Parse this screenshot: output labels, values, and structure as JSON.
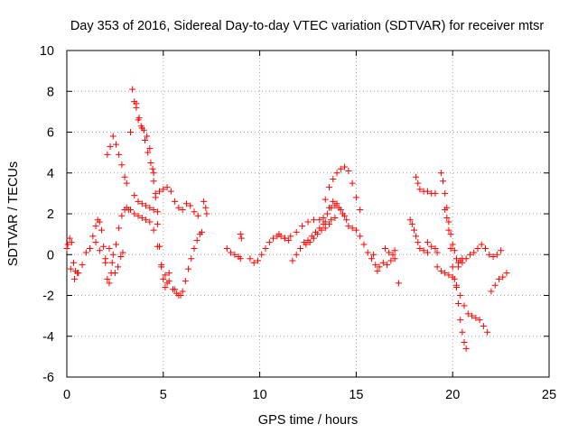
{
  "chart_data": {
    "type": "scatter",
    "title": "Day 353 of 2016, Sidereal Day-to-day VTEC variation (SDTVAR) for receiver mtsr",
    "xlabel": "GPS time / hours",
    "ylabel": "SDTVAR / TECUs",
    "xlim": [
      0,
      25
    ],
    "ylim": [
      -6,
      10
    ],
    "x_ticks": [
      0,
      5,
      10,
      15,
      20,
      25
    ],
    "y_ticks": [
      -6,
      -4,
      -2,
      0,
      2,
      4,
      6,
      8,
      10
    ],
    "grid": true,
    "marker": "plus",
    "color": "#ff0000",
    "series": [
      {
        "name": "s1",
        "x": [
          0.0,
          0.2,
          0.4,
          0.6,
          0.8,
          1.0,
          1.2
        ],
        "y": [
          0.3,
          -0.7,
          -1.2,
          -0.9,
          -0.5,
          0.1,
          0.3
        ]
      },
      {
        "name": "s2",
        "x": [
          0.05,
          0.15,
          0.25,
          0.35,
          0.45,
          0.55
        ],
        "y": [
          0.5,
          0.8,
          0.6,
          -0.4,
          -0.8,
          -0.9
        ]
      },
      {
        "name": "s3",
        "x": [
          1.2,
          1.35,
          1.5,
          1.6,
          1.7,
          1.8
        ],
        "y": [
          0.3,
          0.9,
          1.4,
          1.7,
          1.6,
          1.2
        ]
      },
      {
        "name": "s4",
        "x": [
          1.5,
          1.7,
          1.9,
          2.0,
          2.1,
          2.2,
          2.3
        ],
        "y": [
          0.6,
          0.2,
          0.4,
          -0.4,
          -1.2,
          -1.4,
          -0.9
        ]
      },
      {
        "name": "s5",
        "x": [
          2.0,
          2.2,
          2.35,
          2.5,
          2.65,
          2.8,
          2.9
        ],
        "y": [
          -0.2,
          0.3,
          -0.4,
          -0.9,
          -0.6,
          -0.1,
          0.1
        ]
      },
      {
        "name": "s6",
        "x": [
          2.1,
          2.25,
          2.4,
          2.55,
          2.7,
          2.85,
          3.0,
          3.1
        ],
        "y": [
          4.9,
          5.3,
          5.8,
          5.4,
          4.9,
          4.4,
          3.8,
          3.5
        ]
      },
      {
        "name": "s7",
        "x": [
          2.4,
          2.55,
          2.7,
          2.85,
          3.0,
          3.1,
          3.2
        ],
        "y": [
          0.0,
          0.5,
          1.3,
          1.9,
          2.2,
          2.3,
          2.2
        ]
      },
      {
        "name": "s8",
        "x": [
          3.3,
          3.4,
          3.5,
          3.6,
          3.7,
          3.85,
          4.0,
          4.15,
          4.3,
          4.45
        ],
        "y": [
          6.0,
          8.1,
          7.5,
          7.2,
          6.6,
          6.3,
          6.1,
          5.8,
          5.2,
          4.2
        ]
      },
      {
        "name": "s9",
        "x": [
          3.6,
          3.75,
          3.9,
          4.05,
          4.2,
          4.35,
          4.5
        ],
        "y": [
          7.4,
          6.7,
          6.2,
          5.6,
          5.0,
          4.5,
          4.0
        ]
      },
      {
        "name": "s10",
        "x": [
          3.5,
          3.7,
          3.9,
          4.1,
          4.3,
          4.5,
          4.7
        ],
        "y": [
          2.9,
          2.6,
          2.5,
          2.4,
          2.3,
          2.2,
          2.1
        ]
      },
      {
        "name": "s11",
        "x": [
          3.3,
          3.5,
          3.7,
          3.9,
          4.1,
          4.3,
          4.5,
          4.7,
          4.9,
          5.1,
          5.3,
          5.5,
          5.7,
          5.9
        ],
        "y": [
          2.2,
          2.0,
          1.9,
          1.8,
          1.7,
          1.6,
          1.2,
          0.4,
          -0.5,
          -1.0,
          -1.3,
          -1.7,
          -1.9,
          -2.0
        ]
      },
      {
        "name": "s12",
        "x": [
          4.5,
          4.6,
          4.7,
          4.8,
          4.9,
          5.0,
          5.1,
          5.2,
          5.3
        ],
        "y": [
          3.6,
          2.8,
          1.5,
          0.4,
          -0.6,
          -1.2,
          -1.6,
          -1.4,
          -0.9
        ]
      },
      {
        "name": "s13",
        "x": [
          4.6,
          4.8,
          5.0,
          5.2,
          5.4,
          5.6,
          5.8,
          6.0,
          6.2,
          6.4,
          6.6,
          6.8
        ],
        "y": [
          3.0,
          3.1,
          3.2,
          3.3,
          3.1,
          2.6,
          2.3,
          2.2,
          2.5,
          2.4,
          2.1,
          1.9
        ]
      },
      {
        "name": "s14",
        "x": [
          5.6,
          5.8,
          6.0,
          6.15,
          6.3,
          6.45,
          6.6,
          6.75,
          6.9,
          7.0
        ],
        "y": [
          -1.7,
          -2.0,
          -1.8,
          -1.3,
          -0.7,
          -0.2,
          0.3,
          0.7,
          1.0,
          1.1
        ]
      },
      {
        "name": "s15",
        "x": [
          7.1,
          7.2,
          7.25
        ],
        "y": [
          2.6,
          2.3,
          2.0
        ]
      },
      {
        "name": "s16",
        "x": [
          8.3,
          8.5,
          8.7,
          8.9,
          9.0
        ],
        "y": [
          0.3,
          0.1,
          0.0,
          -0.1,
          -0.2
        ]
      },
      {
        "name": "s17",
        "x": [
          9.0,
          9.05
        ],
        "y": [
          1.0,
          0.8
        ]
      },
      {
        "name": "s18",
        "x": [
          9.5,
          9.7,
          9.9,
          10.1,
          10.3,
          10.5,
          10.7,
          10.9,
          11.1,
          11.3,
          11.5
        ],
        "y": [
          -0.2,
          -0.4,
          -0.3,
          0.0,
          0.3,
          0.6,
          0.8,
          0.9,
          0.9,
          0.8,
          0.7
        ]
      },
      {
        "name": "s19",
        "x": [
          11.0,
          11.3,
          11.6,
          11.9,
          12.2,
          12.5,
          12.8,
          13.1,
          13.4,
          13.7,
          13.9
        ],
        "y": [
          1.0,
          0.8,
          0.9,
          1.1,
          1.4,
          1.6,
          1.7,
          1.7,
          1.6,
          1.7,
          1.8
        ]
      },
      {
        "name": "s20",
        "x": [
          11.7,
          11.9,
          12.1,
          12.3,
          12.5,
          12.7,
          12.9,
          13.1,
          13.3
        ],
        "y": [
          -0.3,
          0.0,
          0.3,
          0.6,
          0.7,
          0.9,
          1.1,
          1.3,
          1.5
        ]
      },
      {
        "name": "s21",
        "x": [
          12.4,
          12.6,
          12.8,
          13.0,
          13.2,
          13.4,
          13.6
        ],
        "y": [
          0.5,
          0.6,
          0.8,
          1.0,
          1.2,
          1.3,
          1.5
        ]
      },
      {
        "name": "s22",
        "x": [
          13.4,
          13.6,
          13.8,
          14.0,
          14.2,
          14.4,
          14.6,
          14.8,
          15.0,
          15.2
        ],
        "y": [
          2.7,
          3.3,
          3.7,
          4.0,
          4.2,
          4.3,
          4.1,
          3.5,
          2.8,
          2.2
        ]
      },
      {
        "name": "s23",
        "x": [
          13.3,
          13.5,
          13.7,
          13.9,
          14.1,
          14.3,
          14.5
        ],
        "y": [
          1.8,
          2.0,
          2.3,
          2.4,
          2.3,
          2.0,
          1.7
        ]
      },
      {
        "name": "s24",
        "x": [
          13.6,
          13.8,
          14.0,
          14.2,
          14.4,
          14.6,
          14.8,
          15.0,
          15.2,
          15.4,
          15.6,
          15.8
        ],
        "y": [
          2.3,
          2.6,
          2.5,
          2.2,
          1.9,
          1.4,
          1.3,
          1.2,
          0.9,
          0.5,
          0.1,
          -0.2
        ]
      },
      {
        "name": "s25",
        "x": [
          15.9,
          16.0,
          16.1,
          16.2,
          16.4,
          16.6,
          16.8,
          17.0
        ],
        "y": [
          0.0,
          -0.5,
          -0.8,
          -0.6,
          -0.4,
          -0.5,
          -0.3,
          -0.2
        ]
      },
      {
        "name": "s26",
        "x": [
          16.5,
          16.7,
          16.9,
          17.0
        ],
        "y": [
          0.3,
          0.1,
          0.0,
          0.2
        ]
      },
      {
        "name": "s27",
        "x": [
          17.2
        ],
        "y": [
          -1.4
        ]
      },
      {
        "name": "s28",
        "x": [
          17.8,
          17.9,
          18.0,
          18.1,
          18.2,
          18.3,
          18.5,
          18.7
        ],
        "y": [
          1.7,
          1.5,
          1.2,
          0.9,
          0.6,
          0.3,
          0.2,
          0.1
        ]
      },
      {
        "name": "s29",
        "x": [
          18.1,
          18.2,
          18.3,
          18.5,
          18.7,
          18.9,
          19.1
        ],
        "y": [
          3.8,
          3.5,
          3.2,
          3.1,
          3.1,
          3.0,
          3.0
        ]
      },
      {
        "name": "s30",
        "x": [
          18.7,
          18.9,
          19.1,
          19.2
        ],
        "y": [
          0.6,
          0.4,
          0.3,
          0.1
        ]
      },
      {
        "name": "s31",
        "x": [
          19.4,
          19.5,
          19.6,
          19.7,
          19.8,
          19.9,
          20.0,
          20.1,
          20.2,
          20.3,
          20.4,
          20.5
        ],
        "y": [
          4.0,
          3.6,
          3.0,
          2.3,
          1.6,
          1.0,
          0.5,
          0.2,
          -0.2,
          -0.4,
          -0.3,
          -0.2
        ]
      },
      {
        "name": "s32",
        "x": [
          19.6,
          19.7,
          19.8,
          19.9,
          20.0,
          20.1,
          20.2,
          20.3,
          20.4,
          20.5,
          20.6,
          20.7
        ],
        "y": [
          2.2,
          1.8,
          1.2,
          0.3,
          -0.6,
          -1.2,
          -1.6,
          -2.4,
          -3.2,
          -3.8,
          -4.3,
          -4.6
        ]
      },
      {
        "name": "s33",
        "x": [
          19.2,
          19.4,
          19.6,
          19.8,
          20.0,
          20.2,
          20.4,
          20.6,
          20.8,
          21.0,
          21.2,
          21.4,
          21.6,
          21.8
        ],
        "y": [
          -0.6,
          -0.8,
          -0.9,
          -1.0,
          -1.1,
          -1.5,
          -2.0,
          -2.5,
          -2.9,
          -3.0,
          -3.1,
          -3.2,
          -3.5,
          -3.8
        ]
      },
      {
        "name": "s34",
        "x": [
          20.3,
          20.5,
          20.7,
          20.9,
          21.1,
          21.3,
          21.5,
          21.7,
          21.9,
          22.1,
          22.3,
          22.5
        ],
        "y": [
          -0.6,
          -0.4,
          -0.2,
          0.0,
          0.1,
          0.3,
          0.5,
          0.3,
          0.0,
          -0.1,
          0.0,
          0.2
        ]
      },
      {
        "name": "s35",
        "x": [
          22.0,
          22.2,
          22.4,
          22.6,
          22.8
        ],
        "y": [
          -1.8,
          -1.5,
          -1.2,
          -1.1,
          -0.9
        ]
      }
    ]
  }
}
